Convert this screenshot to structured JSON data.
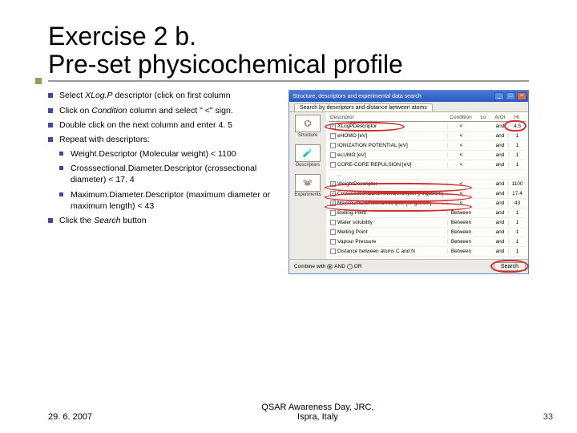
{
  "title_line1": "Exercise 2 b.",
  "title_line2": "Pre-set physicochemical profile",
  "bullets": {
    "b1a": "Select ",
    "b1b": "XLog.P",
    "b1c": " descriptor (click on first column",
    "b2a": "Click on ",
    "b2b": "Condition",
    "b2c": " column and select \" <\" sign.",
    "b3": "Double click on the next column and enter 4. 5",
    "b4": "Repeat with descriptors:",
    "s1": "Weight.Descriptor (Molecular weight)  < 1100",
    "s2": "Crosssectional.Diameter.Descriptor (crossectional diameter)  < 17. 4",
    "s3": "Maximum.Diameter.Descriptor (maximum diameter or maximum length)  < 43",
    "b5a": "Click the ",
    "b5b": "Search",
    "b5c": " button"
  },
  "footer": {
    "date": "29. 6. 2007",
    "center1": "QSAR Awareness Day, JRC,",
    "center2": "Ispra, Italy",
    "page": "33"
  },
  "win": {
    "title": "Structure, descriptors and experimental data search",
    "tab": "Search by descriptors and distance between atoms",
    "side": {
      "s1": "Structure",
      "s2": "Descriptors",
      "s3": "Experiments"
    },
    "head": {
      "d": "Descriptor",
      "c": "Condition",
      "lo": "Lo",
      "a": "A/Or",
      "hi": "Hi"
    },
    "rows": [
      {
        "chk": true,
        "name": "XLogPDescriptor",
        "cond": "<",
        "lo": "",
        "aor": "and",
        "hi": "4.5"
      },
      {
        "chk": false,
        "name": "eHOMO [eV]",
        "cond": "<",
        "lo": "",
        "aor": "and",
        "hi": "1"
      },
      {
        "chk": false,
        "name": "IONIZATION POTENTIAL [eV]",
        "cond": "<",
        "lo": "",
        "aor": "and",
        "hi": "1"
      },
      {
        "chk": false,
        "name": "eLUMO [eV]",
        "cond": "<",
        "lo": "",
        "aor": "and",
        "hi": "1"
      },
      {
        "chk": false,
        "name": "CORE-CORE REPULSION [eV]",
        "cond": "<",
        "lo": "",
        "aor": "and",
        "hi": "1"
      }
    ],
    "rows2": [
      {
        "chk": true,
        "name": "WeightDescriptor",
        "cond": "<",
        "lo": "",
        "aor": "and",
        "hi": "1100"
      },
      {
        "chk": true,
        "name": "CrosssectionalDiameterDescriptor [Angstrom]",
        "cond": "<",
        "lo": "",
        "aor": "and",
        "hi": "17.4"
      },
      {
        "chk": true,
        "name": "MaximumDiameterDescriptor [Angstrom]",
        "cond": "<",
        "lo": "",
        "aor": "and",
        "hi": "43"
      },
      {
        "chk": false,
        "name": "Boiling Point",
        "cond": "Between",
        "lo": "",
        "aor": "and",
        "hi": "1"
      },
      {
        "chk": false,
        "name": "Water solubility",
        "cond": "Between",
        "lo": "",
        "aor": "and",
        "hi": "1"
      },
      {
        "chk": false,
        "name": "Melting Point",
        "cond": "Between",
        "lo": "",
        "aor": "and",
        "hi": "1"
      },
      {
        "chk": false,
        "name": "Vapour Pressure",
        "cond": "Between",
        "lo": "",
        "aor": "and",
        "hi": "1"
      },
      {
        "chk": false,
        "name": "Distance between atoms C and N",
        "cond": "Between",
        "lo": "",
        "aor": "and",
        "hi": "1"
      }
    ],
    "combine": "Combine with",
    "and": "AND",
    "or": "OR",
    "search": "Search"
  }
}
